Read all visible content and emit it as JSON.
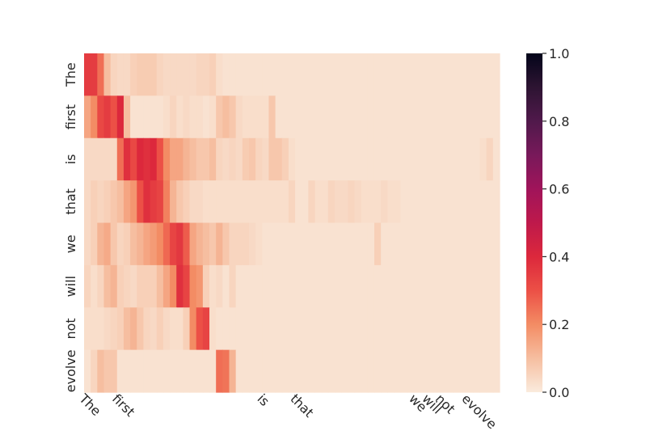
{
  "chart_data": {
    "type": "heatmap",
    "title": "",
    "xlabel": "",
    "ylabel": "",
    "y_labels": [
      "The",
      "first",
      "is",
      "that",
      "we",
      "will",
      "not",
      "evolve"
    ],
    "x_tick_labels": [
      {
        "col": 0,
        "label": "The"
      },
      {
        "col": 5,
        "label": "first"
      },
      {
        "col": 27,
        "label": "is"
      },
      {
        "col": 32,
        "label": "that"
      },
      {
        "col": 50,
        "label": "we"
      },
      {
        "col": 52,
        "label": "will"
      },
      {
        "col": 54,
        "label": "not"
      },
      {
        "col": 58,
        "label": "evolve"
      }
    ],
    "n_columns": 63,
    "colorbar": {
      "min": 0.0,
      "max": 1.0,
      "ticks": [
        "0.0",
        "0.2",
        "0.4",
        "0.6",
        "0.8",
        "1.0"
      ],
      "colormap": "rocket_r"
    },
    "values": [
      [
        0.35,
        0.35,
        0.25,
        0.1,
        0.05,
        0.04,
        0.04,
        0.06,
        0.07,
        0.07,
        0.07,
        0.05,
        0.04,
        0.04,
        0.04,
        0.04,
        0.04,
        0.05,
        0.05,
        0.06,
        0.03,
        0.02,
        0.02,
        0.02,
        0.02,
        0.02,
        0.02,
        0.02,
        0.02,
        0.02,
        0.02,
        0.02,
        0.02,
        0.02,
        0.02,
        0.02,
        0.02,
        0.02,
        0.02,
        0.02,
        0.02,
        0.02,
        0.02,
        0.02,
        0.02,
        0.02,
        0.02,
        0.02,
        0.02,
        0.02,
        0.02,
        0.02,
        0.02,
        0.02,
        0.02,
        0.02,
        0.02,
        0.02,
        0.02,
        0.02,
        0.02,
        0.02,
        0.02
      ],
      [
        0.15,
        0.2,
        0.32,
        0.35,
        0.3,
        0.4,
        0.1,
        0.02,
        0.02,
        0.02,
        0.02,
        0.02,
        0.03,
        0.05,
        0.03,
        0.04,
        0.03,
        0.03,
        0.02,
        0.03,
        0.08,
        0.1,
        0.08,
        0.04,
        0.03,
        0.03,
        0.03,
        0.03,
        0.08,
        0.02,
        0.02,
        0.02,
        0.02,
        0.02,
        0.02,
        0.02,
        0.02,
        0.02,
        0.02,
        0.02,
        0.02,
        0.02,
        0.02,
        0.02,
        0.02,
        0.02,
        0.02,
        0.02,
        0.02,
        0.02,
        0.02,
        0.02,
        0.02,
        0.02,
        0.02,
        0.02,
        0.02,
        0.02,
        0.02,
        0.02,
        0.02,
        0.02,
        0.02
      ],
      [
        0.04,
        0.04,
        0.04,
        0.04,
        0.04,
        0.25,
        0.38,
        0.32,
        0.4,
        0.38,
        0.4,
        0.3,
        0.2,
        0.15,
        0.15,
        0.12,
        0.1,
        0.08,
        0.08,
        0.1,
        0.05,
        0.04,
        0.05,
        0.04,
        0.07,
        0.08,
        0.05,
        0.04,
        0.08,
        0.08,
        0.06,
        0.03,
        0.02,
        0.02,
        0.02,
        0.02,
        0.02,
        0.02,
        0.02,
        0.02,
        0.02,
        0.02,
        0.02,
        0.02,
        0.02,
        0.02,
        0.02,
        0.02,
        0.02,
        0.02,
        0.02,
        0.02,
        0.02,
        0.02,
        0.02,
        0.02,
        0.02,
        0.02,
        0.02,
        0.02,
        0.03,
        0.05,
        0.02
      ],
      [
        0.04,
        0.06,
        0.05,
        0.06,
        0.08,
        0.1,
        0.15,
        0.18,
        0.3,
        0.38,
        0.35,
        0.33,
        0.22,
        0.12,
        0.08,
        0.06,
        0.04,
        0.04,
        0.03,
        0.03,
        0.03,
        0.03,
        0.03,
        0.03,
        0.03,
        0.03,
        0.03,
        0.03,
        0.03,
        0.03,
        0.03,
        0.05,
        0.02,
        0.02,
        0.05,
        0.03,
        0.03,
        0.05,
        0.04,
        0.04,
        0.05,
        0.04,
        0.03,
        0.03,
        0.03,
        0.04,
        0.03,
        0.03,
        0.02,
        0.02,
        0.02,
        0.02,
        0.02,
        0.02,
        0.02,
        0.02,
        0.02,
        0.02,
        0.02,
        0.02,
        0.02,
        0.02,
        0.02
      ],
      [
        0.04,
        0.06,
        0.12,
        0.14,
        0.08,
        0.05,
        0.06,
        0.1,
        0.12,
        0.15,
        0.17,
        0.2,
        0.26,
        0.33,
        0.36,
        0.28,
        0.15,
        0.12,
        0.1,
        0.08,
        0.12,
        0.08,
        0.05,
        0.05,
        0.05,
        0.04,
        0.03,
        0.02,
        0.02,
        0.02,
        0.02,
        0.02,
        0.02,
        0.02,
        0.02,
        0.02,
        0.02,
        0.02,
        0.02,
        0.02,
        0.02,
        0.02,
        0.02,
        0.02,
        0.06,
        0.02,
        0.02,
        0.02,
        0.02,
        0.02,
        0.02,
        0.02,
        0.02,
        0.02,
        0.02,
        0.02,
        0.02,
        0.02,
        0.02,
        0.02,
        0.02,
        0.02,
        0.02
      ],
      [
        0.05,
        0.03,
        0.05,
        0.1,
        0.12,
        0.06,
        0.05,
        0.04,
        0.06,
        0.06,
        0.06,
        0.1,
        0.15,
        0.2,
        0.38,
        0.33,
        0.2,
        0.18,
        0.06,
        0.03,
        0.04,
        0.02,
        0.05,
        0.02,
        0.02,
        0.02,
        0.02,
        0.02,
        0.02,
        0.02,
        0.02,
        0.02,
        0.02,
        0.02,
        0.02,
        0.02,
        0.02,
        0.02,
        0.02,
        0.02,
        0.02,
        0.02,
        0.02,
        0.02,
        0.02,
        0.02,
        0.02,
        0.02,
        0.02,
        0.02,
        0.02,
        0.02,
        0.02,
        0.02,
        0.02,
        0.02,
        0.02,
        0.02,
        0.02,
        0.02,
        0.02,
        0.02,
        0.02
      ],
      [
        0.03,
        0.03,
        0.03,
        0.04,
        0.05,
        0.06,
        0.1,
        0.12,
        0.08,
        0.05,
        0.04,
        0.06,
        0.04,
        0.03,
        0.03,
        0.06,
        0.2,
        0.3,
        0.33,
        0.03,
        0.02,
        0.02,
        0.02,
        0.02,
        0.02,
        0.02,
        0.02,
        0.02,
        0.02,
        0.02,
        0.02,
        0.02,
        0.02,
        0.02,
        0.02,
        0.02,
        0.02,
        0.02,
        0.02,
        0.02,
        0.02,
        0.02,
        0.02,
        0.02,
        0.02,
        0.02,
        0.02,
        0.02,
        0.02,
        0.02,
        0.02,
        0.02,
        0.02,
        0.02,
        0.02,
        0.02,
        0.02,
        0.02,
        0.02,
        0.02,
        0.02,
        0.02,
        0.02
      ],
      [
        0.02,
        0.05,
        0.1,
        0.08,
        0.08,
        0.02,
        0.02,
        0.02,
        0.02,
        0.02,
        0.02,
        0.02,
        0.02,
        0.02,
        0.02,
        0.02,
        0.02,
        0.02,
        0.02,
        0.02,
        0.25,
        0.24,
        0.12,
        0.02,
        0.02,
        0.02,
        0.02,
        0.02,
        0.02,
        0.02,
        0.02,
        0.02,
        0.02,
        0.02,
        0.02,
        0.02,
        0.02,
        0.02,
        0.02,
        0.02,
        0.02,
        0.02,
        0.02,
        0.02,
        0.02,
        0.02,
        0.02,
        0.02,
        0.02,
        0.02,
        0.02,
        0.02,
        0.02,
        0.02,
        0.02,
        0.02,
        0.02,
        0.02,
        0.02,
        0.02,
        0.02,
        0.02,
        0.02
      ]
    ]
  }
}
